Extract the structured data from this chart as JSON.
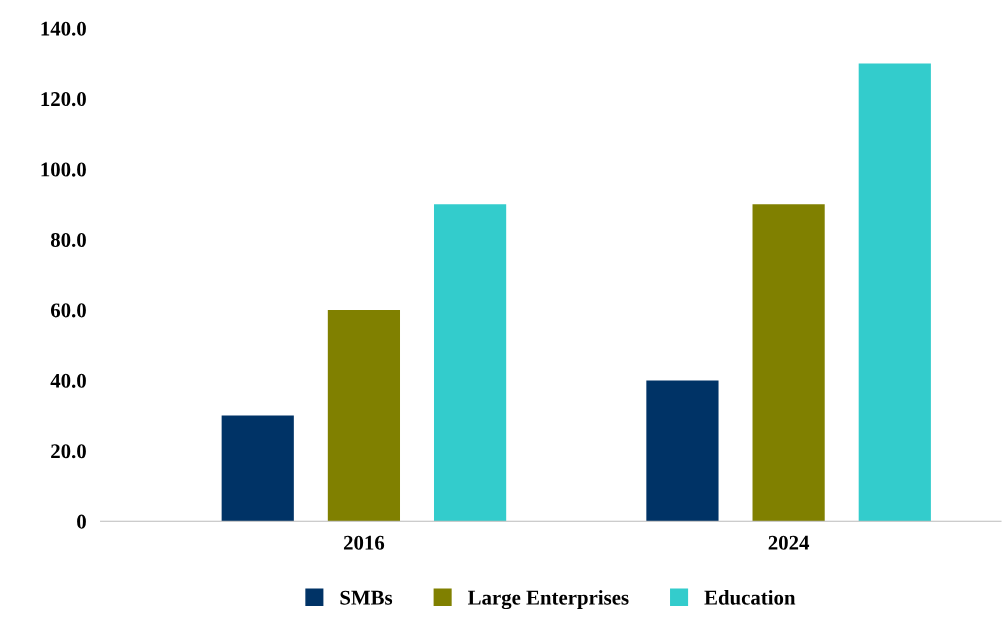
{
  "chart_data": {
    "type": "bar",
    "categories": [
      "2016",
      "2024"
    ],
    "series": [
      {
        "name": "SMBs",
        "color": "#003366",
        "values": [
          30,
          40
        ]
      },
      {
        "name": "Large Enterprises",
        "color": "#808000",
        "values": [
          60,
          90
        ]
      },
      {
        "name": "Education",
        "color": "#33cccc",
        "values": [
          90,
          130
        ]
      }
    ],
    "ylim": [
      0,
      140
    ],
    "yticks": [
      {
        "value": 0,
        "label": "0"
      },
      {
        "value": 20,
        "label": "20.0"
      },
      {
        "value": 40,
        "label": "40.0"
      },
      {
        "value": 60,
        "label": "60.0"
      },
      {
        "value": 80,
        "label": "80.0"
      },
      {
        "value": 100,
        "label": "100.0"
      },
      {
        "value": 120,
        "label": "120.0"
      },
      {
        "value": 140,
        "label": "140.0"
      }
    ],
    "grid": false,
    "legend": "bottom"
  }
}
